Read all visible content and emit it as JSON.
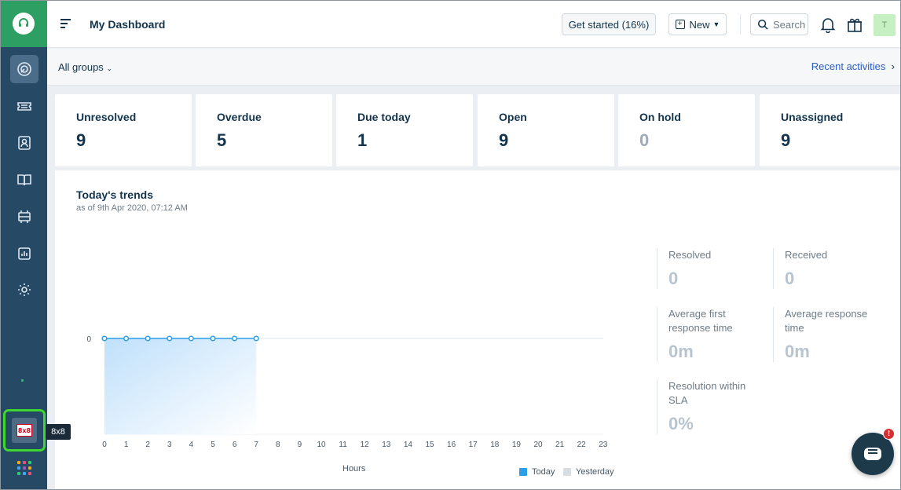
{
  "header": {
    "title": "My Dashboard",
    "get_started": "Get started (16%)",
    "new_button": "New",
    "search_placeholder": "Search",
    "avatar_initial": "T"
  },
  "groups_bar": {
    "groups_select": "All groups",
    "recent_activities": "Recent activities"
  },
  "sidebar": {
    "items": [
      "dashboard-icon",
      "tickets-icon",
      "contacts-icon",
      "solutions-icon",
      "forums-icon",
      "reports-icon",
      "admin-icon"
    ],
    "app_label": "8x8",
    "app_logo_text": "8x8"
  },
  "stats": [
    {
      "label": "Unresolved",
      "value": "9",
      "muted": false
    },
    {
      "label": "Overdue",
      "value": "5",
      "muted": false
    },
    {
      "label": "Due today",
      "value": "1",
      "muted": false
    },
    {
      "label": "Open",
      "value": "9",
      "muted": false
    },
    {
      "label": "On hold",
      "value": "0",
      "muted": true
    },
    {
      "label": "Unassigned",
      "value": "9",
      "muted": false
    }
  ],
  "trends": {
    "title": "Today's trends",
    "subtitle": "as of 9th Apr 2020, 07:12 AM",
    "metrics": [
      {
        "label": "Resolved",
        "value": "0"
      },
      {
        "label": "Received",
        "value": "0"
      },
      {
        "label": "Average first response time",
        "value": "0m"
      },
      {
        "label": "Average response time",
        "value": "0m"
      },
      {
        "label": "Resolution within SLA",
        "value": "0%"
      }
    ]
  },
  "chat": {
    "badge": "!"
  },
  "colors": {
    "sidebar": "#264966",
    "logo_bg": "#2e9f62",
    "today_series": "#2c9ee8",
    "yesterday_series": "#d8dde2",
    "link": "#2c5cc5",
    "highlight_border": "#3ed62f"
  },
  "chart_data": {
    "type": "area",
    "x": [
      0,
      1,
      2,
      3,
      4,
      5,
      6,
      7,
      8,
      9,
      10,
      11,
      12,
      13,
      14,
      15,
      16,
      17,
      18,
      19,
      20,
      21,
      22,
      23
    ],
    "xlabel": "Hours",
    "ylabel": "",
    "y_ticks": [
      "0"
    ],
    "series": [
      {
        "name": "Today",
        "x": [
          0,
          1,
          2,
          3,
          4,
          5,
          6,
          7
        ],
        "values": [
          0,
          0,
          0,
          0,
          0,
          0,
          0,
          0
        ]
      },
      {
        "name": "Yesterday",
        "x": [],
        "values": []
      }
    ],
    "legend_position": "bottom-right"
  }
}
